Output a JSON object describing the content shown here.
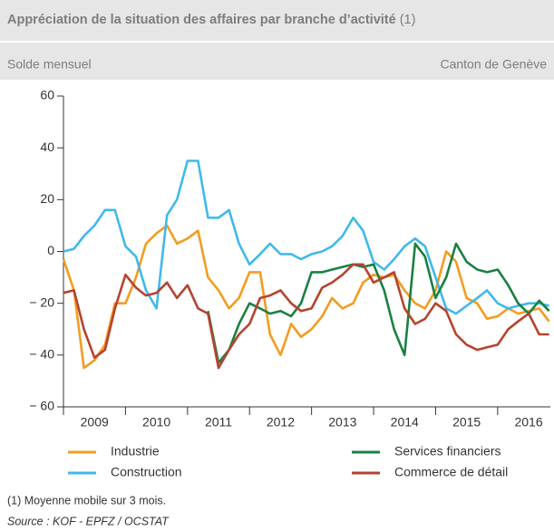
{
  "chart_data": {
    "type": "line",
    "title": "Appréciation de la situation des affaires par branche d’activité",
    "title_note": "(1)",
    "subtitle": "Solde mensuel",
    "subtitle_right": "Canton de Genève",
    "notes": [
      "(1) Moyenne mobile sur 3 mois.",
      "Source : KOF - EPFZ / OCSTAT"
    ],
    "legend": "bottom",
    "xlim": [
      2009,
      2016.85
    ],
    "xticks": [
      {
        "value": 2009.5,
        "label": "2009"
      },
      {
        "value": 2010.5,
        "label": "2010"
      },
      {
        "value": 2011.5,
        "label": "2011"
      },
      {
        "value": 2012.5,
        "label": "2012"
      },
      {
        "value": 2013.5,
        "label": "2013"
      },
      {
        "value": 2014.5,
        "label": "2014"
      },
      {
        "value": 2015.5,
        "label": "2015"
      },
      {
        "value": 2016.5,
        "label": "2016"
      }
    ],
    "xtick_marks": [
      2009,
      2010,
      2011,
      2012,
      2013,
      2014,
      2015,
      2016
    ],
    "ylim": [
      -60,
      60
    ],
    "yticks": [
      60,
      40,
      20,
      0,
      {
        "value": -20,
        "label": "− 20"
      },
      {
        "value": -40,
        "label": "− 40"
      },
      {
        "value": -60,
        "label": "− 60"
      }
    ],
    "x": [
      2009,
      2009.17,
      2009.33,
      2009.5,
      2009.67,
      2009.83,
      2010,
      2010.17,
      2010.33,
      2010.5,
      2010.67,
      2010.83,
      2011,
      2011.17,
      2011.33,
      2011.5,
      2011.67,
      2011.83,
      2012,
      2012.17,
      2012.33,
      2012.5,
      2012.67,
      2012.83,
      2013,
      2013.17,
      2013.33,
      2013.5,
      2013.67,
      2013.83,
      2014,
      2014.17,
      2014.33,
      2014.5,
      2014.67,
      2014.83,
      2015,
      2015.17,
      2015.33,
      2015.5,
      2015.67,
      2015.83,
      2016,
      2016.17,
      2016.33,
      2016.5,
      2016.67,
      2016.83
    ],
    "series": [
      {
        "name": "Industrie",
        "color": "#f39c1f",
        "values": [
          -3,
          -15,
          -45,
          -42,
          -36,
          -20,
          -20,
          -10,
          3,
          7,
          10,
          3,
          5,
          8,
          -10,
          -15,
          -22,
          -18,
          -8,
          -8,
          -32,
          -40,
          -28,
          -33,
          -30,
          -25,
          -18,
          -22,
          -20,
          -12,
          -9,
          -10,
          -9,
          -15,
          -20,
          -22,
          -15,
          0,
          -4,
          -18,
          -20,
          -26,
          -25,
          -22,
          -24,
          -23,
          -22,
          -27
        ]
      },
      {
        "name": "Construction",
        "color": "#40b9ea",
        "values": [
          0,
          1,
          6,
          10,
          16,
          16,
          2,
          -2,
          -15,
          -22,
          14,
          20,
          35,
          35,
          13,
          13,
          16,
          3,
          -5,
          -1,
          3,
          -1,
          -1,
          -3,
          -1,
          0,
          2,
          6,
          13,
          8,
          -4,
          -7,
          -3,
          2,
          5,
          2,
          -10,
          -22,
          -24,
          -21,
          -18,
          -15,
          -20,
          -22,
          -21,
          -20,
          -20,
          -21
        ]
      },
      {
        "name": "Services financiers",
        "color": "#1b8044",
        "values": [
          null,
          null,
          null,
          null,
          null,
          null,
          null,
          null,
          null,
          null,
          null,
          null,
          null,
          null,
          -23,
          -43,
          -38,
          -28,
          -20,
          -22,
          -24,
          -23,
          -25,
          -20,
          -8,
          -8,
          -7,
          -6,
          -5,
          -6,
          -5,
          -15,
          -30,
          -40,
          3,
          -2,
          -18,
          -10,
          3,
          -4,
          -7,
          -8,
          -7,
          -13,
          -20,
          -24,
          -19,
          -23
        ]
      },
      {
        "name": "Commerce de détail",
        "color": "#b5432f",
        "values": [
          -16,
          -15,
          -30,
          -41,
          -38,
          -22,
          -9,
          -14,
          -17,
          -16,
          -12,
          -18,
          -13,
          -22,
          -24,
          -45,
          -38,
          -32,
          -28,
          -18,
          -17,
          -15,
          -20,
          -23,
          -22,
          -14,
          -12,
          -9,
          -5,
          -5,
          -12,
          -10,
          -8,
          -22,
          -28,
          -26,
          -20,
          -23,
          -32,
          -36,
          -38,
          -37,
          -36,
          -30,
          -27,
          -24,
          -32,
          -32
        ]
      }
    ]
  }
}
